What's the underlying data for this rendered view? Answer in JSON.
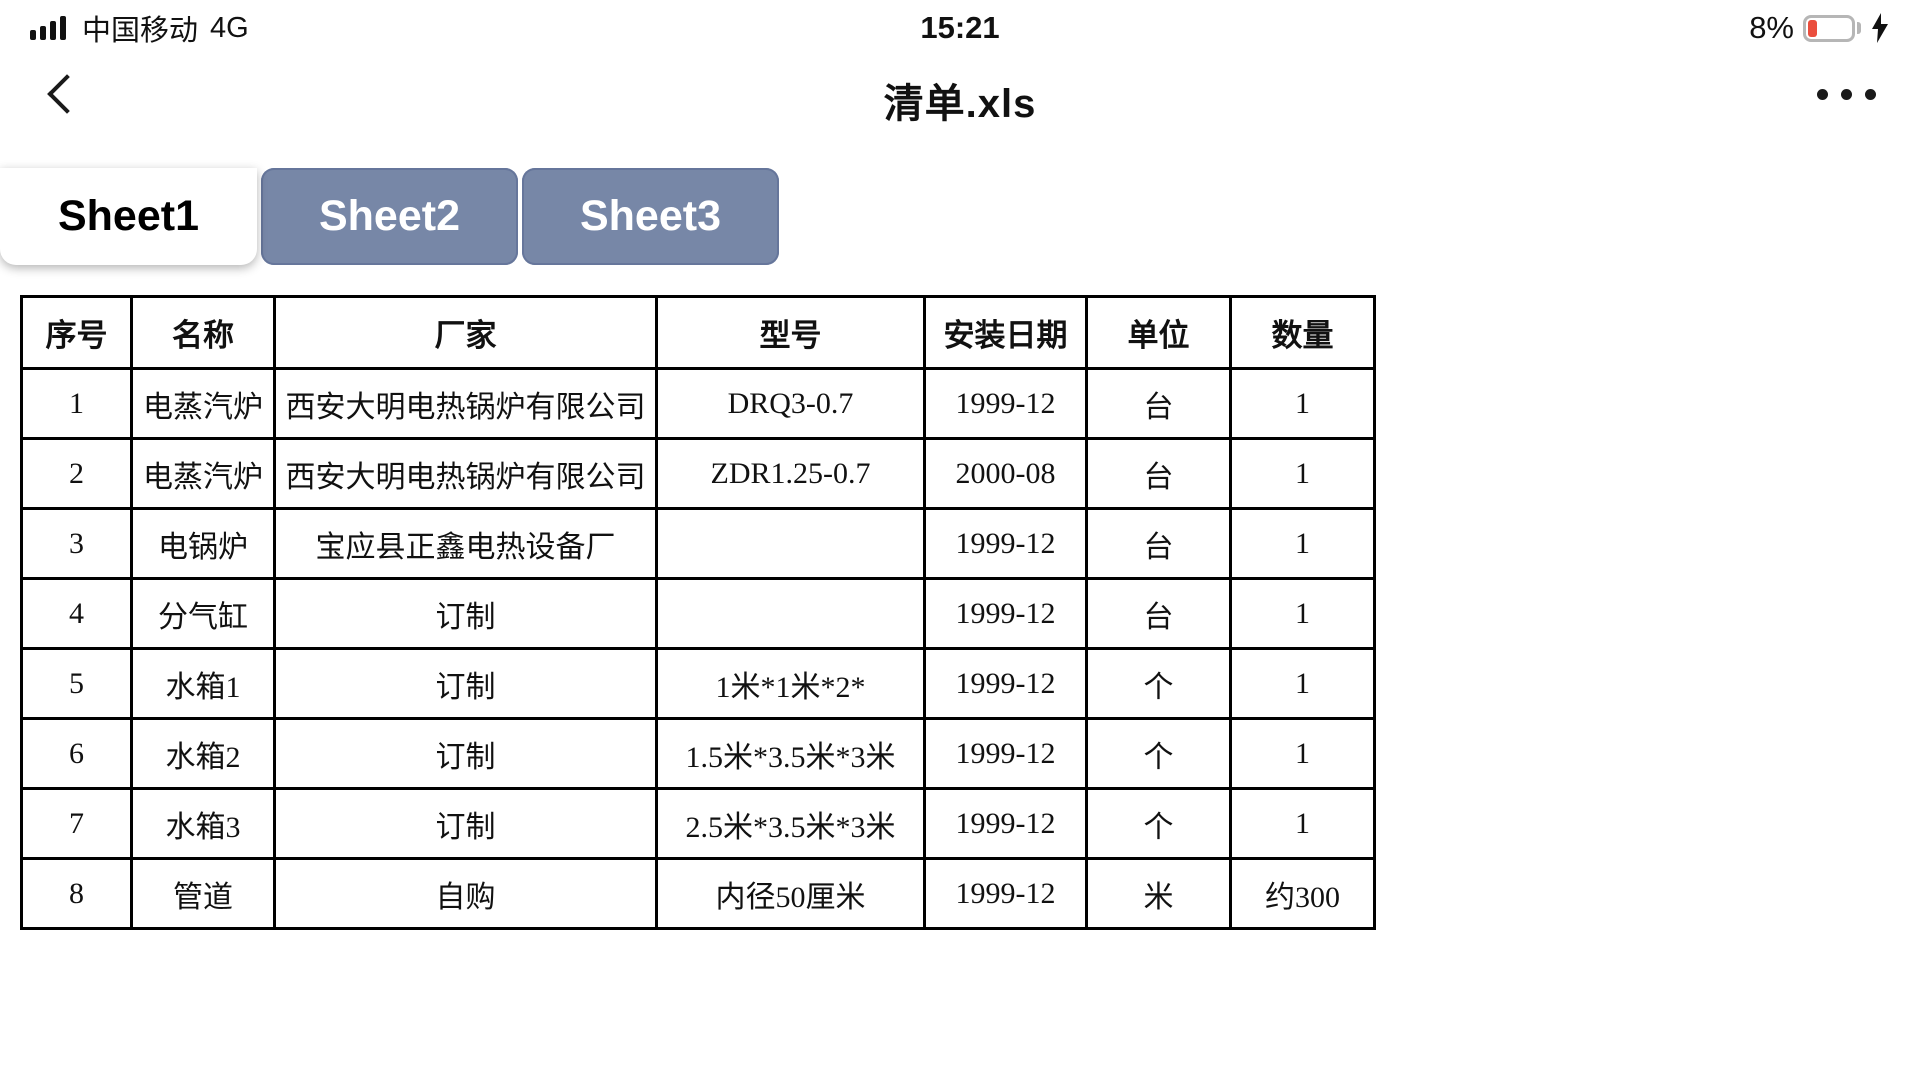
{
  "status_bar": {
    "carrier": "中国移动",
    "network": "4G",
    "time": "15:21",
    "battery_percent": "8%",
    "battery_level_color": "#ea4e3d",
    "icons": {
      "signal": "signal-bars-icon",
      "battery": "battery-low-icon",
      "charging": "charging-bolt-icon"
    }
  },
  "nav_bar": {
    "back_icon": "chevron-left-icon",
    "title": "清单.xls",
    "more_icon": "ellipsis-icon"
  },
  "sheet_tabs": {
    "active_bg": "#ffffff",
    "inactive_bg": "#7787a7",
    "items": [
      {
        "label": "Sheet1",
        "active": true
      },
      {
        "label": "Sheet2",
        "active": false
      },
      {
        "label": "Sheet3",
        "active": false
      }
    ]
  },
  "table": {
    "headers": [
      "序号",
      "名称",
      "厂家",
      "型号",
      "安装日期",
      "单位",
      "数量"
    ],
    "rows": [
      [
        "1",
        "电蒸汽炉",
        "西安大明电热锅炉有限公司",
        "DRQ3-0.7",
        "1999-12",
        "台",
        "1"
      ],
      [
        "2",
        "电蒸汽炉",
        "西安大明电热锅炉有限公司",
        "ZDR1.25-0.7",
        "2000-08",
        "台",
        "1"
      ],
      [
        "3",
        "电锅炉",
        "宝应县正鑫电热设备厂",
        "",
        "1999-12",
        "台",
        "1"
      ],
      [
        "4",
        "分气缸",
        "订制",
        "",
        "1999-12",
        "台",
        "1"
      ],
      [
        "5",
        "水箱1",
        "订制",
        "1米*1米*2*",
        "1999-12",
        "个",
        "1"
      ],
      [
        "6",
        "水箱2",
        "订制",
        "1.5米*3.5米*3米",
        "1999-12",
        "个",
        "1"
      ],
      [
        "7",
        "水箱3",
        "订制",
        "2.5米*3.5米*3米",
        "1999-12",
        "个",
        "1"
      ],
      [
        "8",
        "管道",
        "自购",
        "内径50厘米",
        "1999-12",
        "米",
        "约300"
      ]
    ]
  }
}
